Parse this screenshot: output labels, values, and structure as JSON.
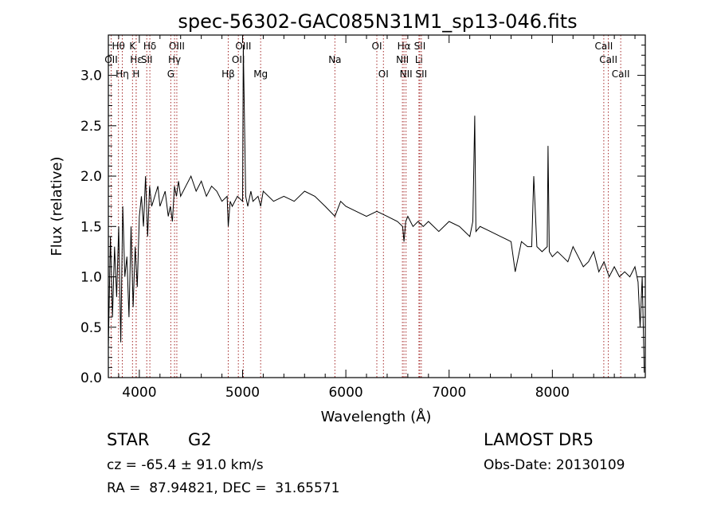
{
  "chart_data": {
    "type": "line",
    "title": "spec-56302-GAC085N31M1_sp13-046.fits",
    "xlabel": "Wavelength (Å)",
    "ylabel": "Flux (relative)",
    "xlim": [
      3700,
      8900
    ],
    "ylim": [
      0.0,
      3.4
    ],
    "xticks": [
      4000,
      5000,
      6000,
      7000,
      8000
    ],
    "xtick_labels": [
      "4000",
      "5000",
      "6000",
      "7000",
      "8000"
    ],
    "yticks": [
      0.0,
      0.5,
      1.0,
      1.5,
      2.0,
      2.5,
      3.0
    ],
    "ytick_labels": [
      "0.0",
      "0.5",
      "1.0",
      "1.5",
      "2.0",
      "2.5",
      "3.0"
    ],
    "grid": false,
    "line_colors": {
      "spectrum": "#000000",
      "markers": "#a52a2a"
    },
    "spectral_lines": [
      {
        "label": "OII",
        "wavelength": 3727,
        "row": 2
      },
      {
        "label": "Hθ",
        "wavelength": 3798,
        "row": 1
      },
      {
        "label": "Hη",
        "wavelength": 3835,
        "row": 3
      },
      {
        "label": "K",
        "wavelength": 3934,
        "row": 1
      },
      {
        "label": "Hε",
        "wavelength": 3970,
        "row": 2
      },
      {
        "label": "H",
        "wavelength": 3969,
        "row": 3
      },
      {
        "label": "Hδ",
        "wavelength": 4102,
        "row": 1
      },
      {
        "label": "SII",
        "wavelength": 4072,
        "row": 2
      },
      {
        "label": "OIII",
        "wavelength": 4363,
        "row": 1
      },
      {
        "label": "Hγ",
        "wavelength": 4341,
        "row": 2
      },
      {
        "label": "G",
        "wavelength": 4305,
        "row": 3
      },
      {
        "label": "Hβ",
        "wavelength": 4861,
        "row": 3
      },
      {
        "label": "OII",
        "wavelength": 4959,
        "row": 2
      },
      {
        "label": "OIII",
        "wavelength": 5007,
        "row": 1
      },
      {
        "label": "Mg",
        "wavelength": 5175,
        "row": 3
      },
      {
        "label": "Na",
        "wavelength": 5894,
        "row": 2
      },
      {
        "label": "OI",
        "wavelength": 6300,
        "row": 1
      },
      {
        "label": "OI",
        "wavelength": 6364,
        "row": 3
      },
      {
        "label": "Hα",
        "wavelength": 6563,
        "row": 1
      },
      {
        "label": "NII",
        "wavelength": 6548,
        "row": 2
      },
      {
        "label": "NII",
        "wavelength": 6583,
        "row": 3
      },
      {
        "label": "SII",
        "wavelength": 6716,
        "row": 1
      },
      {
        "label": "Li",
        "wavelength": 6708,
        "row": 2
      },
      {
        "label": "SII",
        "wavelength": 6731,
        "row": 3
      },
      {
        "label": "CaII",
        "wavelength": 8498,
        "row": 1
      },
      {
        "label": "CaII",
        "wavelength": 8542,
        "row": 2
      },
      {
        "label": "CaII",
        "wavelength": 8662,
        "row": 3
      }
    ],
    "series": [
      {
        "x": [
          3700,
          3720,
          3740,
          3760,
          3780,
          3800,
          3820,
          3840,
          3860,
          3880,
          3900,
          3920,
          3940,
          3960,
          3980,
          4000,
          4020,
          4040,
          4060,
          4080,
          4100,
          4120,
          4150,
          4180,
          4200,
          4250,
          4280,
          4300,
          4320,
          4340,
          4360,
          4380,
          4400,
          4450,
          4500,
          4550,
          4600,
          4650,
          4700,
          4750,
          4800,
          4850,
          4861,
          4880,
          4900,
          4950,
          5000,
          5007,
          5030,
          5050,
          5080,
          5100,
          5150,
          5175,
          5200,
          5300,
          5400,
          5500,
          5600,
          5700,
          5800,
          5894,
          5950,
          6000,
          6100,
          6200,
          6300,
          6400,
          6500,
          6550,
          6563,
          6580,
          6600,
          6650,
          6700,
          6750,
          6800,
          6900,
          7000,
          7100,
          7200,
          7230,
          7248,
          7260,
          7300,
          7400,
          7500,
          7600,
          7640,
          7700,
          7760,
          7800,
          7820,
          7850,
          7900,
          7950,
          7958,
          7970,
          8000,
          8050,
          8100,
          8150,
          8200,
          8250,
          8300,
          8350,
          8400,
          8450,
          8500,
          8550,
          8600,
          8650,
          8700,
          8750,
          8800,
          8830,
          8850,
          8870,
          8890
        ],
        "y": [
          0.3,
          1.4,
          0.6,
          1.3,
          0.8,
          1.5,
          0.35,
          1.7,
          1.0,
          1.2,
          0.6,
          1.5,
          0.7,
          1.3,
          0.9,
          1.6,
          1.8,
          1.5,
          2.0,
          1.4,
          1.9,
          1.7,
          1.8,
          1.9,
          1.7,
          1.85,
          1.6,
          1.7,
          1.55,
          1.9,
          1.8,
          1.95,
          1.8,
          1.9,
          2.0,
          1.85,
          1.95,
          1.8,
          1.9,
          1.85,
          1.75,
          1.8,
          1.5,
          1.75,
          1.7,
          1.8,
          1.75,
          3.3,
          1.8,
          1.7,
          1.85,
          1.75,
          1.8,
          1.7,
          1.85,
          1.75,
          1.8,
          1.75,
          1.85,
          1.8,
          1.7,
          1.6,
          1.75,
          1.7,
          1.65,
          1.6,
          1.65,
          1.6,
          1.55,
          1.5,
          1.35,
          1.55,
          1.6,
          1.5,
          1.55,
          1.5,
          1.55,
          1.45,
          1.55,
          1.5,
          1.4,
          1.55,
          2.6,
          1.45,
          1.5,
          1.45,
          1.4,
          1.35,
          1.05,
          1.35,
          1.3,
          1.3,
          2.0,
          1.3,
          1.25,
          1.3,
          2.3,
          1.25,
          1.2,
          1.25,
          1.2,
          1.15,
          1.3,
          1.2,
          1.1,
          1.15,
          1.25,
          1.05,
          1.15,
          1.0,
          1.1,
          1.0,
          1.05,
          1.0,
          1.1,
          0.95,
          0.5,
          1.0,
          0.05
        ]
      }
    ]
  },
  "info": {
    "obj_class": "STAR",
    "obj_subclass": "G2",
    "cz": "cz = -65.4 ± 91.0 km/s",
    "radec": "RA =  87.94821, DEC =  31.65571",
    "survey": "LAMOST DR5",
    "obs_date": "Obs-Date: 20130109"
  }
}
